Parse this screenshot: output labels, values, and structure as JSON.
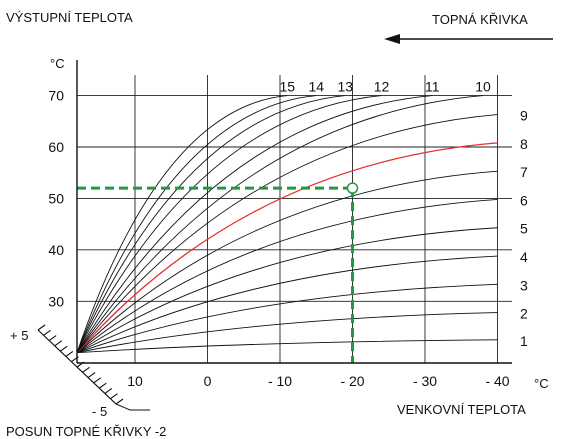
{
  "chart_data": {
    "type": "line",
    "title": "",
    "ylabel": "VÝSTUPNÍ TEPLOTA",
    "xlabel": "VENKOVNÍ TEPLOTA",
    "y_unit": "°C",
    "x_unit": "°C",
    "curves_label": "TOPNÁ KŘIVKA",
    "shift_label": "POSUN TOPNÉ KŘIVKY -2",
    "shift_plus_label": "+ 5",
    "shift_minus_label": "- 5",
    "x_ticks": [
      10,
      0,
      -10,
      -20,
      -30,
      -40
    ],
    "x_tick_labels": [
      "10",
      "0",
      "- 10",
      "- 20",
      "- 30",
      "- 40"
    ],
    "y_ticks": [
      30,
      40,
      50,
      60,
      70
    ],
    "y_tick_labels": [
      "30",
      "40",
      "50",
      "60",
      "70"
    ],
    "xlim": [
      18,
      -42
    ],
    "ylim": [
      18,
      74
    ],
    "grid": true,
    "curve_origin": {
      "x": 18,
      "y": 20
    },
    "series": [
      {
        "name": "1",
        "end": {
          "x": -40,
          "y": 22.5
        }
      },
      {
        "name": "2",
        "end": {
          "x": -40,
          "y": 27.8
        }
      },
      {
        "name": "3",
        "end": {
          "x": -40,
          "y": 33.3
        }
      },
      {
        "name": "4",
        "end": {
          "x": -40,
          "y": 38.8
        }
      },
      {
        "name": "5",
        "end": {
          "x": -40,
          "y": 44.3
        }
      },
      {
        "name": "6",
        "end": {
          "x": -40,
          "y": 49.8
        }
      },
      {
        "name": "7",
        "end": {
          "x": -40,
          "y": 55.3
        }
      },
      {
        "name": "8",
        "end": {
          "x": -40,
          "y": 60.8
        }
      },
      {
        "name": "9",
        "end": {
          "x": -40,
          "y": 66.3
        }
      },
      {
        "name": "10",
        "end": {
          "x": -38,
          "y": 70
        }
      },
      {
        "name": "11",
        "end": {
          "x": -31,
          "y": 70
        }
      },
      {
        "name": "12",
        "end": {
          "x": -24,
          "y": 70
        }
      },
      {
        "name": "13",
        "end": {
          "x": -19,
          "y": 70
        }
      },
      {
        "name": "14",
        "end": {
          "x": -15,
          "y": 70
        }
      },
      {
        "name": "15",
        "end": {
          "x": -11,
          "y": 70
        }
      }
    ],
    "highlighted_curve": "8",
    "highlight_color": "#e53030",
    "operating_point": {
      "x": -20,
      "y": 52
    },
    "guide_color": "#1f9a3c"
  }
}
